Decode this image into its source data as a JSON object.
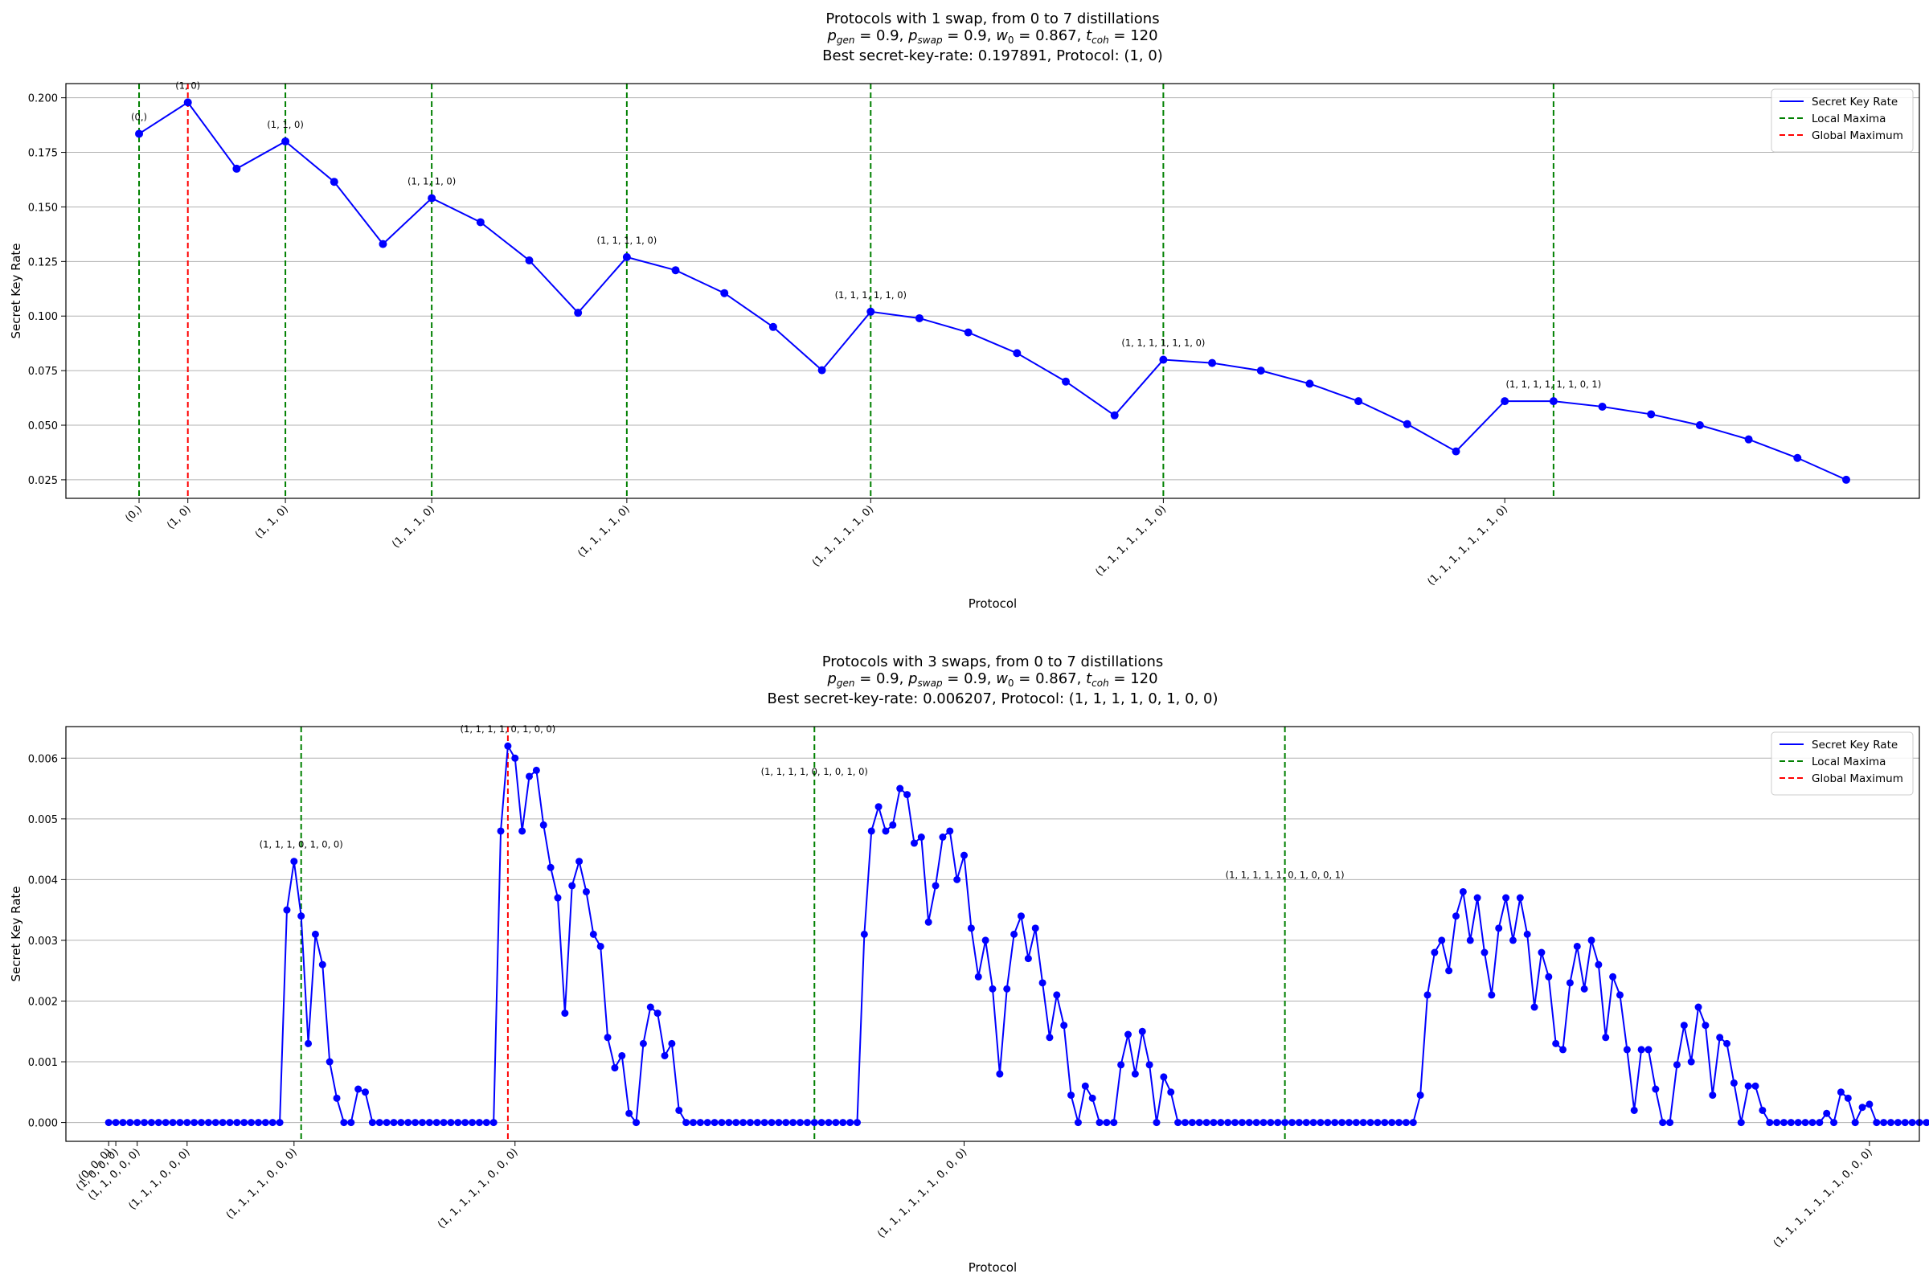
{
  "chart_data": [
    {
      "type": "line",
      "title_lines": [
        "Protocols with 1 swap, from 0 to 7 distillations",
        "p_gen = 0.9, p_swap = 0.9, w_0 = 0.867, t_coh = 120",
        "Best secret-key-rate: 0.197891, Protocol: (1, 0)"
      ],
      "xlabel": "Protocol",
      "ylabel": "Secret Key Rate",
      "xlim": [
        -1.5,
        36.5
      ],
      "ylim": [
        0.0165,
        0.2065
      ],
      "yticks": [
        0.025,
        0.05,
        0.075,
        0.1,
        0.125,
        0.15,
        0.175,
        0.2
      ],
      "ytick_labels": [
        "0.025",
        "0.050",
        "0.075",
        "0.100",
        "0.125",
        "0.150",
        "0.175",
        "0.200"
      ],
      "xticks": [
        0,
        1,
        3,
        6,
        10,
        15,
        21,
        28
      ],
      "xtick_labels": [
        "(0,)",
        "(1, 0)",
        "(1, 1, 0)",
        "(1, 1, 1, 0)",
        "(1, 1, 1, 1, 0)",
        "(1, 1, 1, 1, 1, 0)",
        "(1, 1, 1, 1, 1, 1, 0)",
        "(1, 1, 1, 1, 1, 1, 1, 0)"
      ],
      "series": [
        {
          "name": "Secret Key Rate",
          "color": "#0000ff",
          "values": [
            0.1835,
            0.1979,
            0.1675,
            0.18,
            0.1615,
            0.133,
            0.154,
            0.143,
            0.1255,
            0.1015,
            0.127,
            0.121,
            0.1105,
            0.095,
            0.0752,
            0.102,
            0.099,
            0.0925,
            0.083,
            0.07,
            0.0545,
            0.08,
            0.0785,
            0.075,
            0.069,
            0.061,
            0.0505,
            0.038,
            0.061,
            0.061,
            0.0585,
            0.055,
            0.05,
            0.0435,
            0.035,
            0.025
          ]
        }
      ],
      "local_maxima": [
        0,
        3,
        6,
        10,
        15,
        21,
        29
      ],
      "global_maximum": 1,
      "annotations": [
        {
          "x": 0,
          "y": 0.1835,
          "text": "(0,)"
        },
        {
          "x": 1,
          "y": 0.1979,
          "text": "(1, 0)"
        },
        {
          "x": 3,
          "y": 0.18,
          "text": "(1, 1, 0)"
        },
        {
          "x": 6,
          "y": 0.154,
          "text": "(1, 1, 1, 0)"
        },
        {
          "x": 10,
          "y": 0.127,
          "text": "(1, 1, 1, 1, 0)"
        },
        {
          "x": 15,
          "y": 0.102,
          "text": "(1, 1, 1, 1, 1, 0)"
        },
        {
          "x": 21,
          "y": 0.08,
          "text": "(1, 1, 1, 1, 1, 1, 0)"
        },
        {
          "x": 29,
          "y": 0.061,
          "text": "(1, 1, 1, 1, 1, 1, 0, 1)"
        }
      ],
      "grid": "y",
      "legend": {
        "position": "top-right",
        "entries": [
          {
            "label": "Secret Key Rate",
            "color": "#0000ff",
            "style": "solid"
          },
          {
            "label": "Local Maxima",
            "color": "#008000",
            "style": "dashed"
          },
          {
            "label": "Global Maximum",
            "color": "#ff0000",
            "style": "dashed"
          }
        ]
      }
    },
    {
      "type": "line",
      "title_lines": [
        "Protocols with 3 swaps, from 0 to 7 distillations",
        "p_gen = 0.9, p_swap = 0.9, w_0 = 0.867, t_coh = 120",
        "Best secret-key-rate: 0.006207, Protocol: (1, 1, 1, 1, 0, 1, 0, 0)"
      ],
      "xlabel": "Protocol",
      "ylabel": "Secret Key Rate",
      "xlim": [
        -6,
        254
      ],
      "ylim": [
        -0.00031,
        0.00652
      ],
      "yticks": [
        0,
        0.001,
        0.002,
        0.003,
        0.004,
        0.005,
        0.006
      ],
      "ytick_labels": [
        "0.000",
        "0.001",
        "0.002",
        "0.003",
        "0.004",
        "0.005",
        "0.006"
      ],
      "xticks": [
        0,
        1,
        4,
        11,
        26,
        57,
        120,
        247
      ],
      "xtick_labels": [
        "(0, 0, 0)",
        "(1, 0, 0, 0)",
        "(1, 1, 0, 0, 0)",
        "(1, 1, 1, 0, 0, 0)",
        "(1, 1, 1, 1, 0, 0, 0)",
        "(1, 1, 1, 1, 1, 0, 0, 0)",
        "(1, 1, 1, 1, 1, 1, 0, 0, 0)",
        "(1, 1, 1, 1, 1, 1, 1, 0, 0, 0)"
      ],
      "series": [
        {
          "name": "Secret Key Rate",
          "color": "#0000ff",
          "x_start": 0,
          "x_step": 1,
          "values": [
            0,
            0,
            0,
            0,
            0,
            0,
            0,
            0,
            0,
            0,
            0,
            0,
            0,
            0,
            0,
            0,
            0,
            0,
            0,
            0,
            0,
            0,
            0,
            0,
            0,
            0.0035,
            0.0043,
            0.0034,
            0.0013,
            0.0031,
            0.0026,
            0.001,
            0.0004,
            0,
            0,
            0.00055,
            0.0005,
            0,
            0,
            0,
            0,
            0,
            0,
            0,
            0,
            0,
            0,
            0,
            0,
            0,
            0,
            0,
            0,
            0,
            0,
            0.0048,
            0.0062,
            0.006,
            0.0048,
            0.0057,
            0.0058,
            0.0049,
            0.0042,
            0.0037,
            0.0018,
            0.0039,
            0.0043,
            0.0038,
            0.0031,
            0.0029,
            0.0014,
            0.0009,
            0.0011,
            0.00015,
            0,
            0.0013,
            0.0019,
            0.0018,
            0.0011,
            0.0013,
            0.0002,
            0,
            0,
            0,
            0,
            0,
            0,
            0,
            0,
            0,
            0,
            0,
            0,
            0,
            0,
            0,
            0,
            0,
            0,
            0,
            0,
            0,
            0,
            0,
            0,
            0,
            0.0031,
            0.0048,
            0.0052,
            0.0048,
            0.0049,
            0.0055,
            0.0054,
            0.0046,
            0.0047,
            0.0033,
            0.0039,
            0.0047,
            0.0048,
            0.004,
            0.0044,
            0.0032,
            0.0024,
            0.003,
            0.0022,
            0.0008,
            0.0022,
            0.0031,
            0.0034,
            0.0027,
            0.0032,
            0.0023,
            0.0014,
            0.0021,
            0.0016,
            0.00045,
            0,
            0.0006,
            0.0004,
            0,
            0,
            0,
            0.00095,
            0.00145,
            0.0008,
            0.0015,
            0.00095,
            0,
            0.00075,
            0.0005,
            0,
            0,
            0,
            0,
            0,
            0,
            0,
            0,
            0,
            0,
            0,
            0,
            0,
            0,
            0,
            0,
            0,
            0,
            0,
            0,
            0,
            0,
            0,
            0,
            0,
            0,
            0,
            0,
            0,
            0,
            0,
            0,
            0,
            0,
            0.00045,
            0.0021,
            0.0028,
            0.003,
            0.0025,
            0.0034,
            0.0038,
            0.003,
            0.0037,
            0.0028,
            0.0021,
            0.0032,
            0.0037,
            0.003,
            0.0037,
            0.0031,
            0.0019,
            0.0028,
            0.0024,
            0.0013,
            0.0012,
            0.0023,
            0.0029,
            0.0022,
            0.003,
            0.0026,
            0.0014,
            0.0024,
            0.0021,
            0.0012,
            0.0002,
            0.0012,
            0.0012,
            0.00055,
            0,
            0,
            0.00095,
            0.0016,
            0.001,
            0.0019,
            0.0016,
            0.00045,
            0.0014,
            0.0013,
            0.00065,
            0,
            0.0006,
            0.0006,
            0.0002,
            0,
            0,
            0,
            0,
            0,
            0,
            0,
            0,
            0.00015,
            0,
            0.0005,
            0.0004,
            0,
            0.00025,
            0.0003,
            0,
            0,
            0,
            0,
            0,
            0,
            0,
            0,
            0,
            0,
            0,
            0,
            0,
            0,
            0,
            0,
            0,
            0,
            0,
            0,
            0,
            0,
            0,
            0,
            0,
            0,
            0,
            0,
            0,
            0,
            0,
            0,
            0,
            0,
            0,
            0,
            0,
            0,
            0,
            0,
            0,
            0,
            0,
            0,
            0,
            0,
            0,
            0,
            0
          ]
        }
      ],
      "local_maxima": [
        27,
        99,
        165
      ],
      "global_maximum": 56,
      "annotations": [
        {
          "x": 27,
          "y": 0.0043,
          "text": "(1, 1, 1, 0, 1, 0, 0)"
        },
        {
          "x": 56,
          "y": 0.0062,
          "text": "(1, 1, 1, 1, 0, 1, 0, 0)"
        },
        {
          "x": 99,
          "y": 0.0055,
          "text": "(1, 1, 1, 1, 0, 1, 0, 1, 0)"
        },
        {
          "x": 165,
          "y": 0.0038,
          "text": "(1, 1, 1, 1, 1, 0, 1, 0, 0, 1)"
        }
      ],
      "grid": "y",
      "legend": {
        "position": "top-right",
        "entries": [
          {
            "label": "Secret Key Rate",
            "color": "#0000ff",
            "style": "solid"
          },
          {
            "label": "Local Maxima",
            "color": "#008000",
            "style": "dashed"
          },
          {
            "label": "Global Maximum",
            "color": "#ff0000",
            "style": "dashed"
          }
        ]
      }
    }
  ]
}
